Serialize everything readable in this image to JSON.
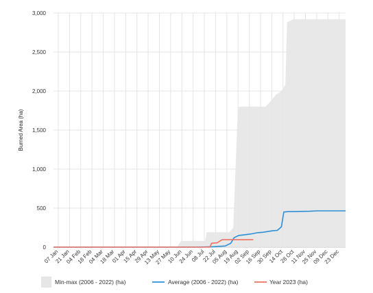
{
  "chart_data": {
    "type": "area",
    "title": "",
    "xlabel": "",
    "ylabel": "Burned Area (ha)",
    "ylim": [
      0,
      3000
    ],
    "y_ticks": [
      "0",
      "500",
      "1,000",
      "1,500",
      "2,000",
      "2,500",
      "3,000"
    ],
    "y_tick_values": [
      0,
      500,
      1000,
      1500,
      2000,
      2500,
      3000
    ],
    "x_ticks": [
      "07 Jan",
      "21 Jan",
      "04 Feb",
      "18 Feb",
      "04 Mar",
      "18 Mar",
      "01 Apr",
      "15 Apr",
      "29 Apr",
      "13 May",
      "27 May",
      "10 Jun",
      "24 Jun",
      "08 Jul",
      "22 Jul",
      "05 Aug",
      "19 Aug",
      "02 Sep",
      "16 Sep",
      "30 Sep",
      "14 Oct",
      "28 Oct",
      "11 Nov",
      "25 Nov",
      "09 Dec",
      "23 Dec"
    ],
    "grid": true,
    "legend_position": "bottom",
    "series": [
      {
        "name": "Min-max (2006 - 2022) (ha)",
        "kind": "band",
        "color": "#e6e6e6",
        "x": [
          1,
          155,
          160,
          190,
          192,
          220,
          225,
          230,
          232,
          265,
          270,
          278,
          285,
          290,
          292,
          300,
          365
        ],
        "upper": [
          0,
          0,
          80,
          80,
          190,
          190,
          250,
          1580,
          1800,
          1800,
          1850,
          1950,
          2000,
          2080,
          2880,
          2920,
          2920
        ],
        "lower": [
          0,
          0,
          0,
          0,
          0,
          0,
          0,
          0,
          0,
          0,
          0,
          0,
          0,
          0,
          0,
          0,
          0
        ]
      },
      {
        "name": "Average (2006 - 2022) (ha)",
        "kind": "line",
        "color": "#2b8fd6",
        "x": [
          1,
          180,
          200,
          215,
          222,
          226,
          232,
          240,
          248,
          255,
          262,
          268,
          274,
          280,
          285,
          288,
          294,
          300,
          320,
          330,
          365
        ],
        "y": [
          0,
          0,
          5,
          15,
          50,
          120,
          150,
          160,
          170,
          185,
          190,
          200,
          210,
          215,
          260,
          450,
          455,
          455,
          460,
          465,
          465
        ]
      },
      {
        "name": "Year 2023 (ha)",
        "kind": "line",
        "color": "#f07060",
        "x": [
          1,
          196,
          198,
          205,
          211,
          217,
          222,
          226,
          232,
          238,
          244,
          250
        ],
        "y": [
          0,
          0,
          50,
          55,
          95,
          95,
          95,
          95,
          95,
          95,
          95,
          95
        ]
      }
    ]
  }
}
